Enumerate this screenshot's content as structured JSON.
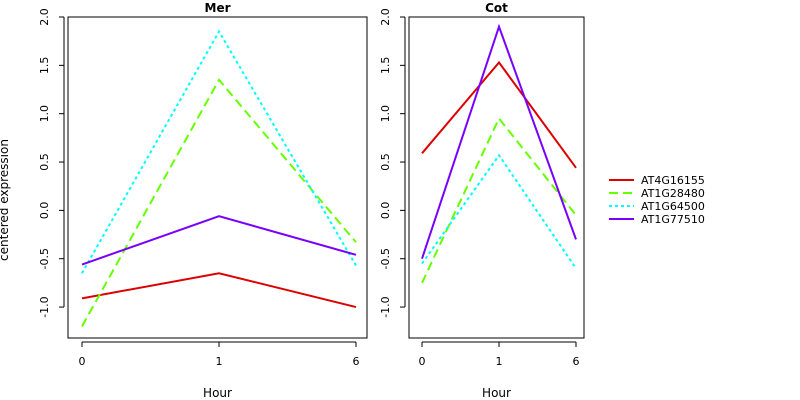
{
  "chart_data": {
    "type": "line",
    "ylabel": "centered expression",
    "xlabel": "Hour",
    "x_ticks": [
      "0",
      "1",
      "6"
    ],
    "y_ticks": [
      "-1.0",
      "-0.5",
      "0.0",
      "0.5",
      "1.0",
      "1.5",
      "2.0"
    ],
    "ylim": [
      -1.32,
      2.0
    ],
    "legend_position": "right",
    "series_styles": [
      {
        "name": "AT4G16155",
        "color": "#dd0000",
        "dash": "solid"
      },
      {
        "name": "AT1G28480",
        "color": "#66ff00",
        "dash": "dashed"
      },
      {
        "name": "AT1G64500",
        "color": "#00ffff",
        "dash": "dotted"
      },
      {
        "name": "AT1G77510",
        "color": "#7700ff",
        "dash": "solid"
      }
    ],
    "panels": [
      {
        "title": "Mer",
        "series": [
          {
            "name": "AT4G16155",
            "values": [
              -0.91,
              -0.65,
              -1.0
            ]
          },
          {
            "name": "AT1G28480",
            "values": [
              -1.2,
              1.35,
              -0.33
            ]
          },
          {
            "name": "AT1G64500",
            "values": [
              -0.65,
              1.85,
              -0.57
            ]
          },
          {
            "name": "AT1G77510",
            "values": [
              -0.56,
              -0.06,
              -0.46
            ]
          }
        ]
      },
      {
        "title": "Cot",
        "series": [
          {
            "name": "AT4G16155",
            "values": [
              0.59,
              1.53,
              0.44
            ]
          },
          {
            "name": "AT1G28480",
            "values": [
              -0.75,
              0.95,
              -0.05
            ]
          },
          {
            "name": "AT1G64500",
            "values": [
              -0.55,
              0.57,
              -0.6
            ]
          },
          {
            "name": "AT1G77510",
            "values": [
              -0.5,
              1.9,
              -0.3
            ]
          }
        ]
      }
    ]
  }
}
